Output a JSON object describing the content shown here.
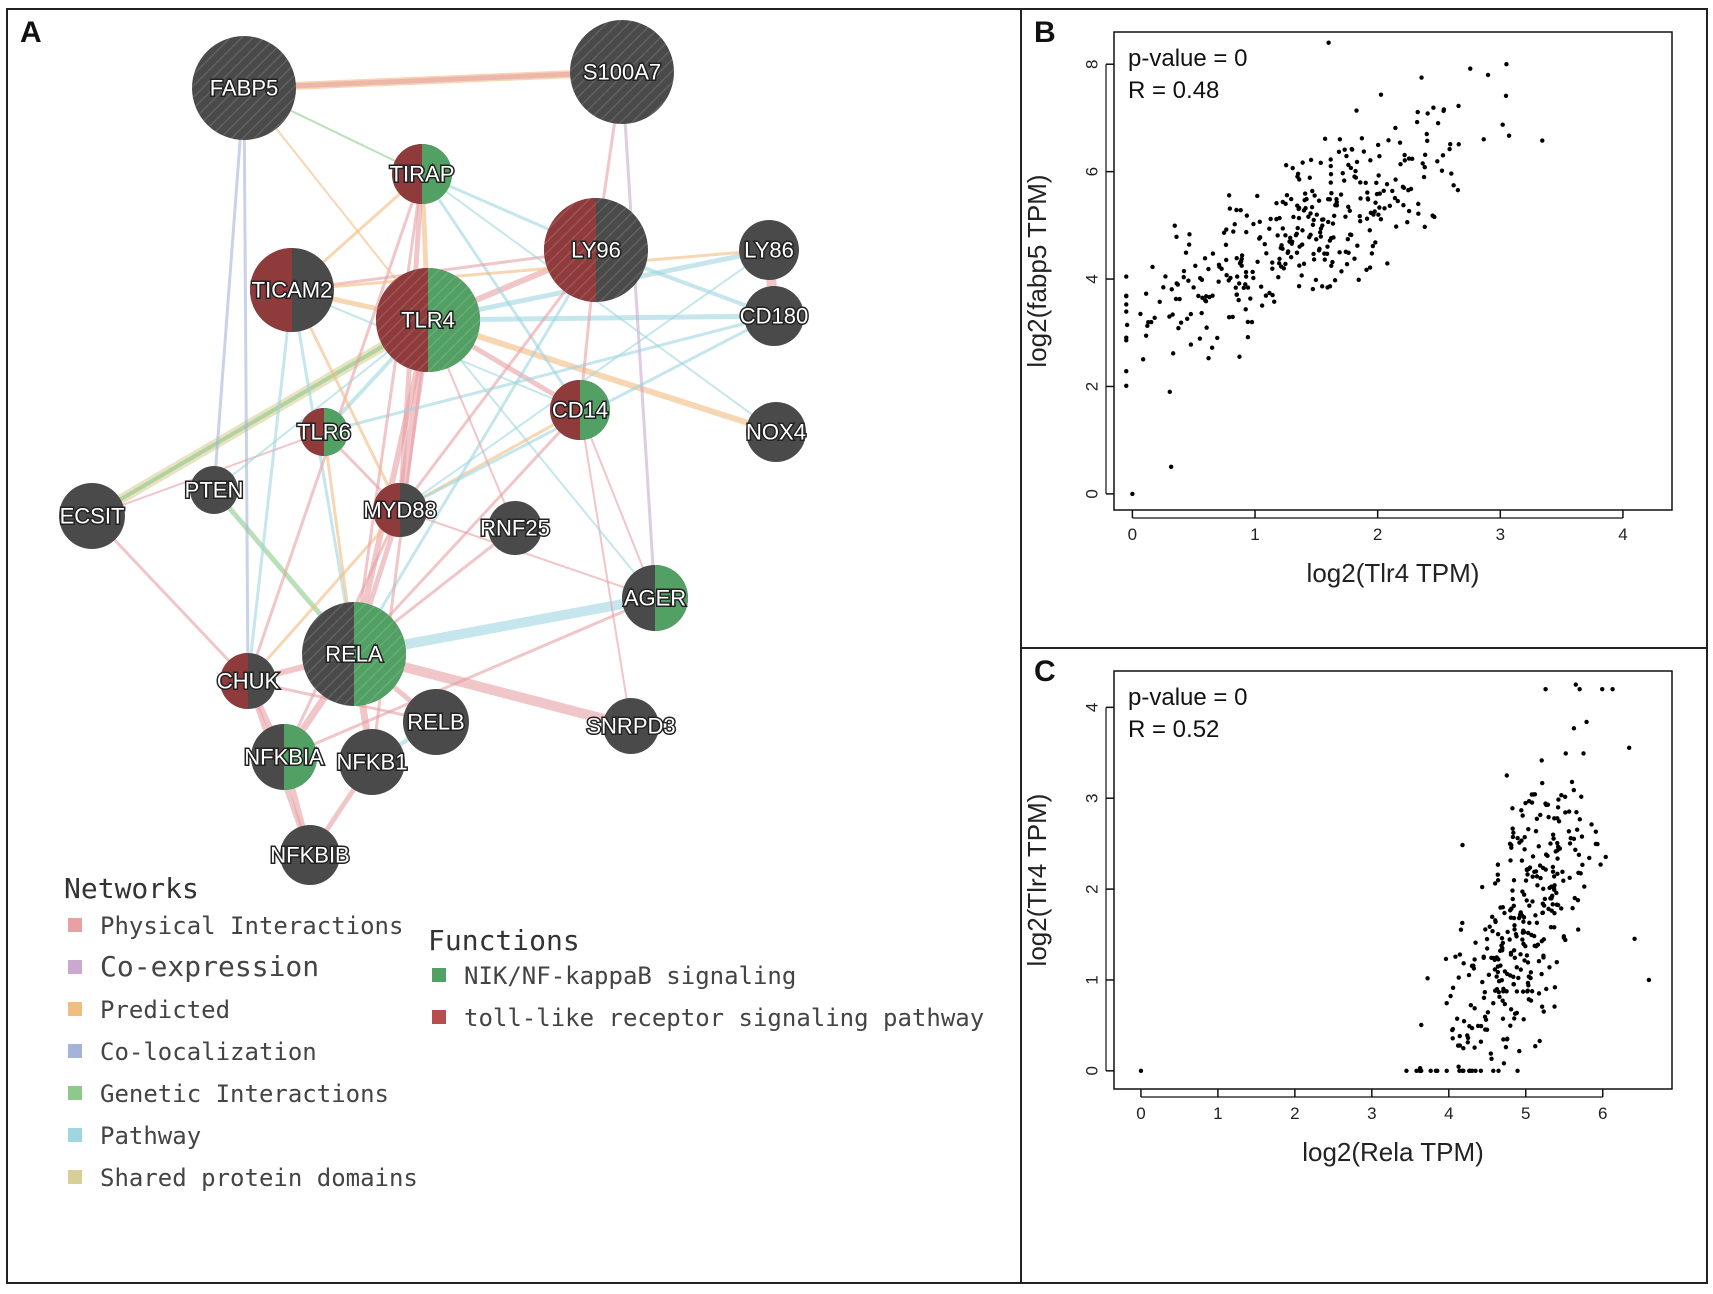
{
  "panels": {
    "a_label": "A",
    "b_label": "B",
    "c_label": "C"
  },
  "colors": {
    "node_gray": "#4a4a4a",
    "node_red": "#8f3b3b",
    "node_green": "#52a063",
    "physical": "#e8a0a5",
    "coexpression": "#c9a9cf",
    "predicted": "#f2bd80",
    "colocalization": "#a3b4d8",
    "genetic": "#8cc98a",
    "pathway": "#9fd6df",
    "shared_domains": "#d8cf97",
    "nik_function": "#52a063",
    "tlr_function": "#b74e4e"
  },
  "network": {
    "nodes": [
      {
        "id": "FABP5",
        "label": "FABP5",
        "size": "large",
        "functions": []
      },
      {
        "id": "S100A7",
        "label": "S100A7",
        "size": "large",
        "functions": []
      },
      {
        "id": "TIRAP",
        "label": "TIRAP",
        "size": "small",
        "functions": [
          "tlr",
          "nik"
        ]
      },
      {
        "id": "LY96",
        "label": "LY96",
        "size": "large",
        "functions": [
          "tlr"
        ]
      },
      {
        "id": "LY86",
        "label": "LY86",
        "size": "small",
        "functions": []
      },
      {
        "id": "TICAM2",
        "label": "TICAM2",
        "size": "medium",
        "functions": [
          "tlr"
        ]
      },
      {
        "id": "TLR4",
        "label": "TLR4",
        "size": "large",
        "functions": [
          "tlr",
          "nik"
        ]
      },
      {
        "id": "CD180",
        "label": "CD180",
        "size": "small",
        "functions": []
      },
      {
        "id": "CD14",
        "label": "CD14",
        "size": "small",
        "functions": [
          "tlr",
          "nik"
        ]
      },
      {
        "id": "TLR6",
        "label": "TLR6",
        "size": "small",
        "functions": [
          "tlr",
          "nik"
        ]
      },
      {
        "id": "NOX4",
        "label": "NOX4",
        "size": "small",
        "functions": []
      },
      {
        "id": "ECSIT",
        "label": "ECSIT",
        "size": "small",
        "functions": []
      },
      {
        "id": "PTEN",
        "label": "PTEN",
        "size": "small",
        "functions": []
      },
      {
        "id": "MYD88",
        "label": "MYD88",
        "size": "small",
        "functions": [
          "tlr"
        ]
      },
      {
        "id": "RNF25",
        "label": "RNF25",
        "size": "small",
        "functions": []
      },
      {
        "id": "AGER",
        "label": "AGER",
        "size": "small",
        "functions": [
          "nik"
        ]
      },
      {
        "id": "RELA",
        "label": "RELA",
        "size": "large",
        "functions": [
          "nik"
        ]
      },
      {
        "id": "CHUK",
        "label": "CHUK",
        "size": "small",
        "functions": [
          "tlr"
        ]
      },
      {
        "id": "RELB",
        "label": "RELB",
        "size": "small",
        "functions": []
      },
      {
        "id": "SNRPD3",
        "label": "SNRPD3",
        "size": "small",
        "functions": []
      },
      {
        "id": "NFKBIA",
        "label": "NFKBIA",
        "size": "medium",
        "functions": [
          "nik"
        ]
      },
      {
        "id": "NFKB1",
        "label": "NFKB1",
        "size": "small",
        "functions": []
      },
      {
        "id": "NFKBIB",
        "label": "NFKBIB",
        "size": "small",
        "functions": []
      }
    ]
  },
  "legend": {
    "networks_title": "Networks",
    "networks": [
      {
        "label": "Physical Interactions",
        "color": "#e8a0a5"
      },
      {
        "label": "Co-expression",
        "color": "#c9a9cf"
      },
      {
        "label": "Predicted",
        "color": "#f2bd80"
      },
      {
        "label": "Co-localization",
        "color": "#a3b4d8"
      },
      {
        "label": "Genetic Interactions",
        "color": "#8cc98a"
      },
      {
        "label": "Pathway",
        "color": "#9fd6df"
      },
      {
        "label": "Shared protein domains",
        "color": "#d8cf97"
      }
    ],
    "functions_title": "Functions",
    "functions": [
      {
        "label": "NIK/NF-kappaB signaling",
        "color": "#52a063"
      },
      {
        "label": "toll-like receptor signaling pathway",
        "color": "#b74e4e"
      }
    ]
  },
  "chart_data": [
    {
      "type": "scatter",
      "panel": "B",
      "stat_pvalue": "p-value = 0",
      "stat_r": "R = 0.48",
      "xlabel": "log2(Tlr4 TPM)",
      "ylabel": "log2(fabp5 TPM)",
      "xlim": [
        -0.15,
        4.4
      ],
      "ylim": [
        -0.3,
        8.6
      ],
      "xticks": [
        0,
        1,
        2,
        3,
        4
      ],
      "yticks": [
        0,
        2,
        4,
        6,
        8
      ],
      "n_points": 360,
      "correlation": 0.48,
      "x_center": 1.4,
      "x_spread": 1.0,
      "y_center": 4.9,
      "y_spread": 1.1,
      "outliers": [
        [
          0,
          0
        ],
        [
          1.6,
          8.4
        ],
        [
          2.9,
          7.8
        ],
        [
          3.05,
          8.0
        ]
      ]
    },
    {
      "type": "scatter",
      "panel": "C",
      "stat_pvalue": "p-value = 0",
      "stat_r": "R = 0.52",
      "xlabel": "log2(Rela TPM)",
      "ylabel": "log2(Tlr4 TPM)",
      "xlim": [
        -0.35,
        6.9
      ],
      "ylim": [
        -0.2,
        4.4
      ],
      "xticks": [
        0,
        1,
        2,
        3,
        4,
        5,
        6
      ],
      "yticks": [
        0,
        1,
        2,
        3,
        4
      ],
      "n_points": 360,
      "correlation": 0.52,
      "x_center": 4.9,
      "x_spread": 0.8,
      "y_center": 1.5,
      "y_spread": 1.0,
      "outliers": [
        [
          0,
          0
        ],
        [
          5.65,
          4.25
        ],
        [
          5.7,
          4.2
        ],
        [
          6.6,
          1.0
        ]
      ]
    }
  ]
}
